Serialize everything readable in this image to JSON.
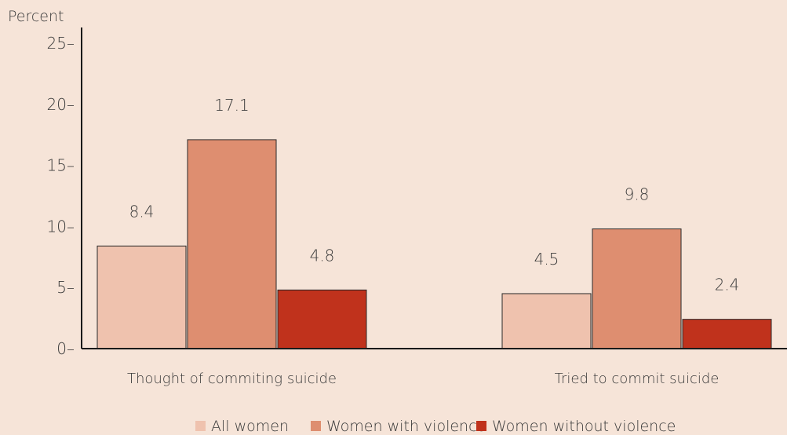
{
  "chart_data": {
    "type": "bar",
    "ylabel": "Percent",
    "ylim": [
      0,
      25
    ],
    "yticks": [
      0,
      5,
      10,
      15,
      20,
      25
    ],
    "ytick_labels": [
      "0–",
      "5–",
      "10–",
      "15–",
      "20–",
      "25–"
    ],
    "categories": [
      "Thought of commiting suicide",
      "Tried to commit suicide"
    ],
    "series": [
      {
        "name": "All women",
        "values": [
          8.4,
          4.5
        ],
        "labels": [
          "8.4",
          "4.5"
        ],
        "color": "#efc2ae"
      },
      {
        "name": "Women with violence",
        "values": [
          17.1,
          9.8
        ],
        "labels": [
          "17.1",
          "9.8"
        ],
        "color": "#de8e70"
      },
      {
        "name": "Women without violence",
        "values": [
          4.8,
          2.4
        ],
        "labels": [
          "4.8",
          "2.4"
        ],
        "color": "#c0321c"
      }
    ],
    "legend_position": "bottom",
    "grid": false
  }
}
